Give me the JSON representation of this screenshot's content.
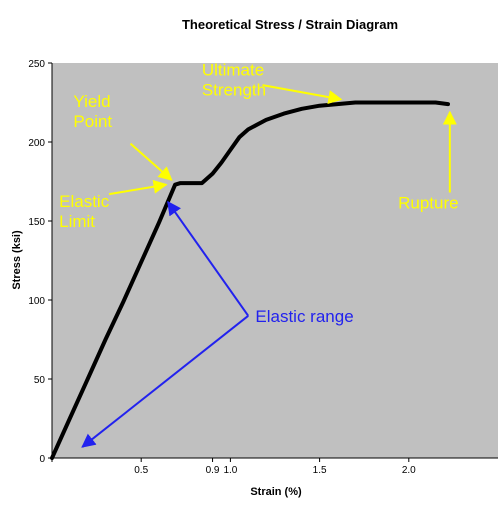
{
  "colors": {
    "background": "#ffffff",
    "plot_area": "#c0c0c0",
    "curve": "#000000",
    "annotation_yellow": "#ffff00",
    "annotation_blue": "#2222ee"
  },
  "chart_data": {
    "type": "line",
    "title": "Theoretical Stress / Strain Diagram",
    "xlabel": "Strain (%)",
    "ylabel": "Stress (ksi)",
    "xlim": [
      0,
      2.5
    ],
    "ylim": [
      0,
      250
    ],
    "grid": false,
    "x_ticks": [
      {
        "value": 0.5,
        "label": "0.5"
      },
      {
        "value": 0.9,
        "label": "0.9"
      },
      {
        "value": 1.0,
        "label": "1.0"
      },
      {
        "value": 1.5,
        "label": "1.5"
      },
      {
        "value": 2.0,
        "label": "2.0"
      }
    ],
    "y_ticks": [
      0,
      50,
      100,
      150,
      200,
      250
    ],
    "series": [
      {
        "points": [
          [
            0.0,
            0
          ],
          [
            0.1,
            25
          ],
          [
            0.2,
            50
          ],
          [
            0.3,
            75
          ],
          [
            0.4,
            99
          ],
          [
            0.5,
            124
          ],
          [
            0.6,
            149
          ],
          [
            0.69,
            173
          ],
          [
            0.72,
            174
          ],
          [
            0.8,
            174
          ],
          [
            0.84,
            174
          ],
          [
            0.9,
            180
          ],
          [
            0.95,
            187
          ],
          [
            1.0,
            195
          ],
          [
            1.05,
            203
          ],
          [
            1.1,
            208
          ],
          [
            1.2,
            214
          ],
          [
            1.3,
            218
          ],
          [
            1.4,
            221
          ],
          [
            1.5,
            223
          ],
          [
            1.6,
            224
          ],
          [
            1.7,
            225
          ],
          [
            1.8,
            225
          ],
          [
            1.9,
            225
          ],
          [
            2.0,
            225
          ],
          [
            2.1,
            225
          ],
          [
            2.15,
            225
          ],
          [
            2.22,
            224
          ]
        ]
      }
    ],
    "annotations": [
      {
        "key": "ultimate",
        "lines": [
          "Ultimate",
          "Strength"
        ],
        "color": "yellow",
        "text_at": [
          0.84,
          242
        ],
        "arrows": [
          {
            "from": [
              1.18,
              236
            ],
            "to": [
              1.62,
              227
            ]
          }
        ]
      },
      {
        "key": "yield",
        "lines": [
          "Yield",
          "Point"
        ],
        "color": "yellow",
        "text_at": [
          0.12,
          222
        ],
        "arrows": [
          {
            "from": [
              0.44,
              199
            ],
            "to": [
              0.67,
              176
            ]
          }
        ]
      },
      {
        "key": "elastic-limit",
        "lines": [
          "Elastic",
          "Limit"
        ],
        "color": "yellow",
        "text_at": [
          0.04,
          159
        ],
        "arrows": [
          {
            "from": [
              0.32,
              167
            ],
            "to": [
              0.64,
              173
            ]
          }
        ]
      },
      {
        "key": "rupture",
        "lines": [
          "Rupture"
        ],
        "color": "yellow",
        "text_at": [
          1.94,
          158
        ],
        "arrows": [
          {
            "from": [
              2.23,
              168
            ],
            "to": [
              2.23,
              219
            ]
          }
        ]
      },
      {
        "key": "elastic-range",
        "lines": [
          "Elastic range"
        ],
        "color": "blue",
        "text_at": [
          1.14,
          86
        ],
        "arrows": [
          {
            "from": [
              1.1,
              90
            ],
            "to": [
              0.65,
              162
            ]
          },
          {
            "from": [
              1.1,
              90
            ],
            "to": [
              0.17,
              7
            ]
          }
        ]
      }
    ]
  }
}
